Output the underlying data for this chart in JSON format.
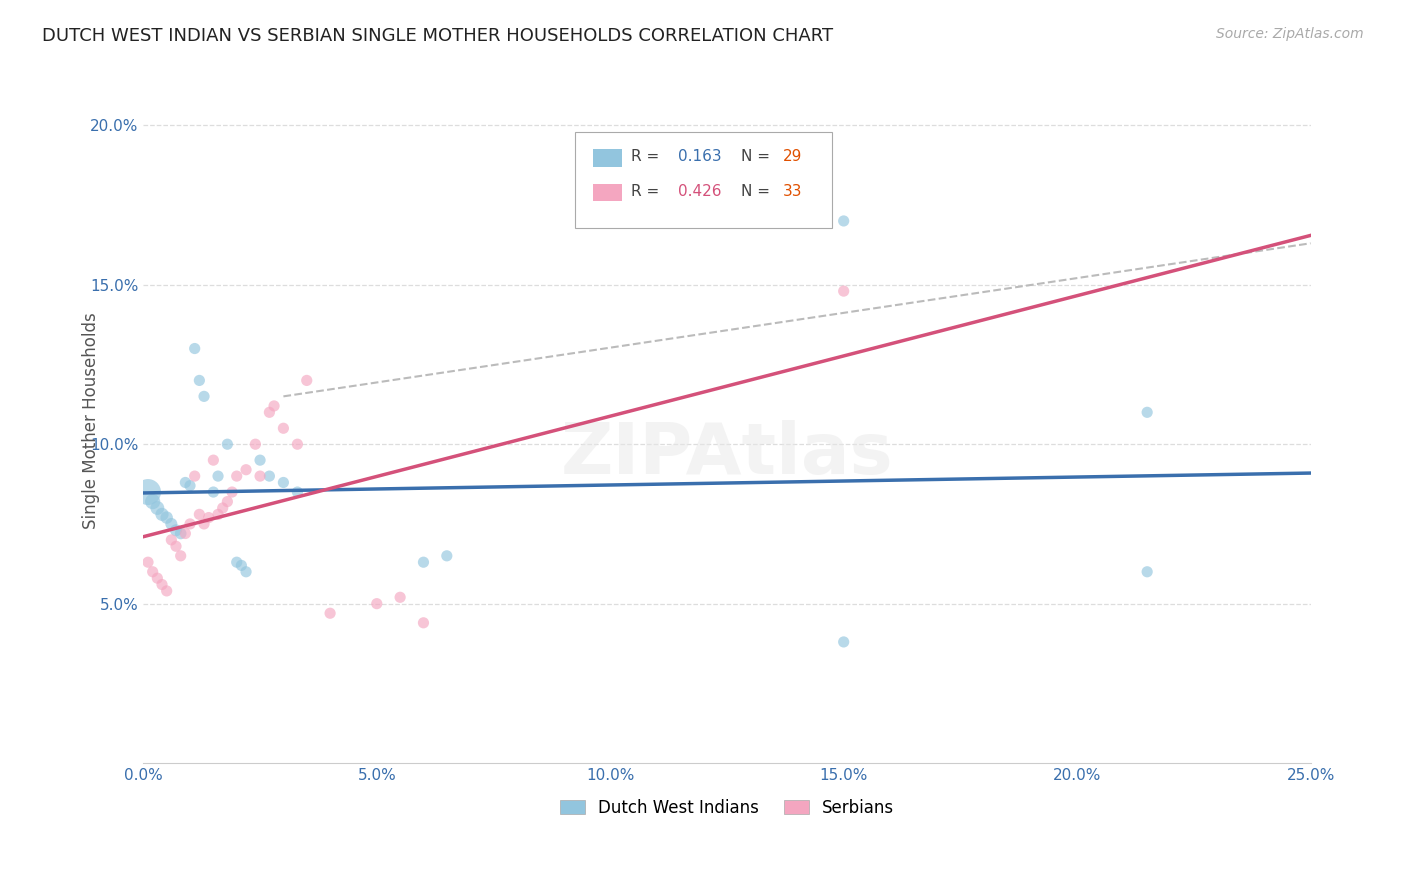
{
  "title": "DUTCH WEST INDIAN VS SERBIAN SINGLE MOTHER HOUSEHOLDS CORRELATION CHART",
  "source": "Source: ZipAtlas.com",
  "ylabel": "Single Mother Households",
  "xlim": [
    0.0,
    0.25
  ],
  "ylim": [
    0.0,
    0.215
  ],
  "xticks": [
    0.0,
    0.05,
    0.1,
    0.15,
    0.2,
    0.25
  ],
  "yticks": [
    0.05,
    0.1,
    0.15,
    0.2
  ],
  "xtick_labels": [
    "0.0%",
    "5.0%",
    "10.0%",
    "15.0%",
    "20.0%",
    "25.0%"
  ],
  "ytick_labels": [
    "5.0%",
    "10.0%",
    "15.0%",
    "20.0%"
  ],
  "legend1_label": "Dutch West Indians",
  "legend2_label": "Serbians",
  "r1": "0.163",
  "n1": "29",
  "r2": "0.426",
  "n2": "33",
  "color_blue": "#92c5de",
  "color_pink": "#f4a6c0",
  "line_color_blue": "#3a6fad",
  "line_color_pink": "#d4517a",
  "line_color_dashed": "#bbbbbb",
  "background_color": "#ffffff",
  "grid_color": "#dddddd",
  "dutch_x": [
    0.001,
    0.002,
    0.003,
    0.004,
    0.005,
    0.006,
    0.007,
    0.008,
    0.009,
    0.01,
    0.011,
    0.012,
    0.013,
    0.015,
    0.016,
    0.018,
    0.02,
    0.021,
    0.022,
    0.025,
    0.027,
    0.03,
    0.033,
    0.06,
    0.065,
    0.15,
    0.215,
    0.215,
    0.15
  ],
  "dutch_y": [
    0.085,
    0.082,
    0.08,
    0.078,
    0.077,
    0.075,
    0.073,
    0.072,
    0.088,
    0.087,
    0.13,
    0.12,
    0.115,
    0.085,
    0.09,
    0.1,
    0.063,
    0.062,
    0.06,
    0.095,
    0.09,
    0.088,
    0.085,
    0.063,
    0.065,
    0.17,
    0.11,
    0.06,
    0.038
  ],
  "dutch_sizes": [
    350,
    120,
    100,
    90,
    80,
    75,
    75,
    70,
    65,
    65,
    65,
    65,
    65,
    65,
    65,
    65,
    65,
    65,
    65,
    65,
    65,
    65,
    65,
    65,
    65,
    65,
    65,
    65,
    65
  ],
  "serbian_x": [
    0.001,
    0.002,
    0.003,
    0.004,
    0.005,
    0.006,
    0.007,
    0.008,
    0.009,
    0.01,
    0.011,
    0.012,
    0.013,
    0.014,
    0.015,
    0.016,
    0.017,
    0.018,
    0.019,
    0.02,
    0.022,
    0.024,
    0.025,
    0.027,
    0.028,
    0.03,
    0.033,
    0.035,
    0.04,
    0.05,
    0.055,
    0.06,
    0.15
  ],
  "serbian_y": [
    0.063,
    0.06,
    0.058,
    0.056,
    0.054,
    0.07,
    0.068,
    0.065,
    0.072,
    0.075,
    0.09,
    0.078,
    0.075,
    0.077,
    0.095,
    0.078,
    0.08,
    0.082,
    0.085,
    0.09,
    0.092,
    0.1,
    0.09,
    0.11,
    0.112,
    0.105,
    0.1,
    0.12,
    0.047,
    0.05,
    0.052,
    0.044,
    0.148
  ],
  "serbian_sizes": [
    65,
    65,
    65,
    65,
    65,
    65,
    65,
    65,
    65,
    65,
    65,
    65,
    65,
    65,
    65,
    65,
    65,
    65,
    65,
    65,
    65,
    65,
    65,
    65,
    65,
    65,
    65,
    65,
    65,
    65,
    65,
    65,
    65
  ]
}
